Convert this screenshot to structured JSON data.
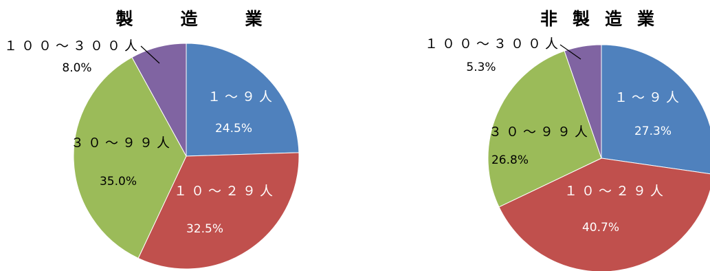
{
  "chart_data": [
    {
      "type": "pie",
      "title": "製　造　業",
      "categories": [
        "１～９人",
        "１０～２９人",
        "３０～９９人",
        "１００～３００人"
      ],
      "values": [
        24.5,
        32.5,
        35.0,
        8.0
      ],
      "value_labels": [
        "24.5%",
        "32.5%",
        "35.0%",
        "8.0%"
      ],
      "colors": [
        "#4f81bd",
        "#c0504d",
        "#9bbb59",
        "#8064a2"
      ],
      "label_colors": [
        "#ffffff",
        "#ffffff",
        "#000000",
        "#000000"
      ],
      "start_angle_deg": 0,
      "direction": "clockwise"
    },
    {
      "type": "pie",
      "title": "非製造業",
      "categories": [
        "１～９人",
        "１０～２９人",
        "３０～９９人",
        "１００～３００人"
      ],
      "values": [
        27.3,
        40.7,
        26.8,
        5.3
      ],
      "value_labels": [
        "27.3%",
        "40.7%",
        "26.8%",
        "5.3%"
      ],
      "colors": [
        "#4f81bd",
        "#c0504d",
        "#9bbb59",
        "#8064a2"
      ],
      "label_colors": [
        "#ffffff",
        "#ffffff",
        "#000000",
        "#000000"
      ],
      "start_angle_deg": 0,
      "direction": "clockwise"
    }
  ]
}
